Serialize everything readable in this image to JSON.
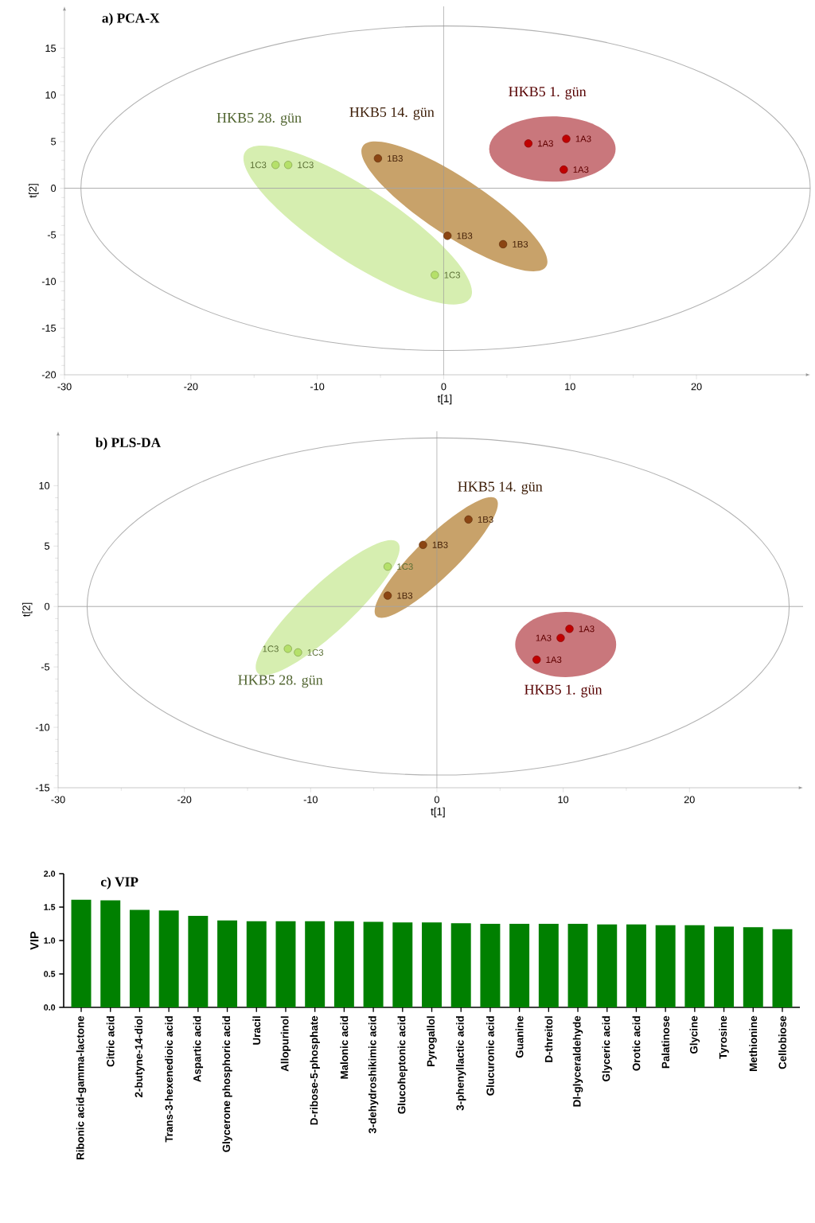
{
  "chart_data": [
    {
      "type": "scatter",
      "title": "a) PCA-X",
      "xlabel": "t[1]",
      "ylabel": "t[2]",
      "xlim": [
        -30,
        29
      ],
      "ylim": [
        -20,
        19.5
      ],
      "xticks": [
        -30,
        -20,
        -10,
        0,
        10,
        20
      ],
      "yticks": [
        -20,
        -15,
        -10,
        -5,
        0,
        5,
        10,
        15
      ],
      "series": [
        {
          "name": "HKB5 1. gün",
          "color": "#c00000",
          "x": [
            6.7,
            9.7,
            9.5
          ],
          "values": [
            4.8,
            5.3,
            2.0
          ]
        },
        {
          "name": "HKB5 14. gün",
          "color": "#8b4513",
          "x": [
            -5.2,
            0.3,
            4.7
          ],
          "values": [
            3.2,
            -5.1,
            -6.0
          ]
        },
        {
          "name": "HKB5 28. gün",
          "color": "#b5e06a",
          "x": [
            -13.3,
            -12.3,
            -0.7
          ],
          "values": [
            2.5,
            2.5,
            -9.3
          ]
        }
      ],
      "annotations": [
        {
          "text": "1A3",
          "x": 6.7,
          "y": 4.8
        },
        {
          "text": "1A3",
          "x": 9.7,
          "y": 5.3
        },
        {
          "text": "1A3",
          "x": 9.5,
          "y": 2.0
        },
        {
          "text": "1B3",
          "x": -5.2,
          "y": 3.2
        },
        {
          "text": "1B3",
          "x": 0.3,
          "y": -5.1
        },
        {
          "text": "1B3",
          "x": 4.7,
          "y": -6.0
        },
        {
          "text": "1C3",
          "x": -13.3,
          "y": 2.5
        },
        {
          "text": "1C3",
          "x": -12.3,
          "y": 2.5
        },
        {
          "text": "1C3",
          "x": -0.7,
          "y": -9.3
        }
      ],
      "ref_lines": [
        {
          "axis": "x",
          "value": 0
        },
        {
          "axis": "y",
          "value": 0
        }
      ]
    },
    {
      "type": "scatter",
      "title": "b) PLS-DA",
      "xlabel": "t[1]",
      "ylabel": "t[2]",
      "xlim": [
        -30,
        29
      ],
      "ylim": [
        -15,
        14.5
      ],
      "xticks": [
        -30,
        -20,
        -10,
        0,
        10,
        20
      ],
      "yticks": [
        -15,
        -10,
        -5,
        0,
        5,
        10
      ],
      "series": [
        {
          "name": "HKB5 1. gün",
          "color": "#c00000",
          "x": [
            10.5,
            9.8,
            7.9
          ],
          "values": [
            -1.85,
            -2.6,
            -4.4
          ]
        },
        {
          "name": "HKB5 14. gün",
          "color": "#8b4513",
          "x": [
            2.5,
            -1.1,
            -3.9
          ],
          "values": [
            7.2,
            5.1,
            0.9
          ]
        },
        {
          "name": "HKB5 28. gün",
          "color": "#b5e06a",
          "x": [
            -3.9,
            -11.8,
            -11.0
          ],
          "values": [
            3.3,
            -3.5,
            -3.8
          ]
        }
      ],
      "annotations": [
        {
          "text": "1A3",
          "x": 10.5,
          "y": -1.85
        },
        {
          "text": "1A3",
          "x": 9.8,
          "y": -2.6
        },
        {
          "text": "1A3",
          "x": 7.9,
          "y": -4.4
        },
        {
          "text": "1B3",
          "x": 2.5,
          "y": 7.2
        },
        {
          "text": "1B3",
          "x": -1.1,
          "y": 5.1
        },
        {
          "text": "1B3",
          "x": -3.9,
          "y": 0.9
        },
        {
          "text": "1C3",
          "x": -3.9,
          "y": 3.3
        },
        {
          "text": "1C3",
          "x": -11.8,
          "y": -3.5
        },
        {
          "text": "1C3",
          "x": -11.0,
          "y": -3.8
        }
      ],
      "ref_lines": [
        {
          "axis": "x",
          "value": 0
        },
        {
          "axis": "y",
          "value": 0
        }
      ]
    },
    {
      "type": "bar",
      "title": "c) VIP",
      "ylabel": "VIP",
      "color": "#008000",
      "categories": [
        "Ribonic acid-gamma-lactone",
        "Citric acid",
        "2-butyne-14-diol",
        "Trans-3-hexenedioic acid",
        "Aspartic acid",
        "Glycerone phosphoric acid",
        "Uracil",
        "Allopurinol",
        "D-ribose-5-phosphate",
        "Malonic acid",
        "3-dehydroshikimic acid",
        "Glucoheptonic acid",
        "Pyrogallol",
        "3-phenyllactic acid",
        "Glucuronic acid",
        "Guanine",
        "D-threitol",
        "Dl-glyceraldehyde",
        "Glyceric acid",
        "Orotic acid",
        "Palatinose",
        "Glycine",
        "Tyrosine",
        "Methionine",
        "Cellobiose"
      ],
      "values": [
        1.61,
        1.6,
        1.46,
        1.45,
        1.37,
        1.3,
        1.29,
        1.29,
        1.29,
        1.29,
        1.28,
        1.27,
        1.27,
        1.26,
        1.25,
        1.25,
        1.25,
        1.25,
        1.24,
        1.24,
        1.23,
        1.23,
        1.21,
        1.2,
        1.17
      ],
      "ylim": [
        0,
        2.0
      ],
      "yticks": [
        {
          "value": 0,
          "label": "0.0"
        },
        {
          "value": 0.5,
          "label": "0.5"
        },
        {
          "value": 1.0,
          "label": "1.0"
        },
        {
          "value": 1.5,
          "label": "1.5"
        },
        {
          "value": 2.0,
          "label": "2.0"
        }
      ]
    }
  ]
}
